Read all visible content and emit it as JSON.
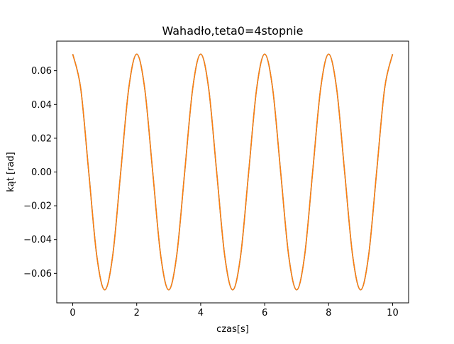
{
  "chart_data": {
    "type": "line",
    "title": "Wahadło,teta0=4stopnie",
    "xlabel": "czas[s]",
    "ylabel": "kąt [rad]",
    "xlim": [
      -0.5,
      10.5
    ],
    "ylim": [
      -0.0775,
      0.0775
    ],
    "grid": false,
    "x_ticks": [
      0,
      2,
      4,
      6,
      8,
      10
    ],
    "x_tick_labels": [
      "0",
      "2",
      "4",
      "6",
      "8",
      "10"
    ],
    "y_ticks": [
      -0.06,
      -0.04,
      -0.02,
      0.0,
      0.02,
      0.04,
      0.06
    ],
    "y_tick_labels": [
      "−0.06",
      "−0.04",
      "−0.02",
      "0.00",
      "0.02",
      "0.04",
      "0.06"
    ],
    "series": [
      {
        "color": "#1f77b4",
        "x": [
          0,
          0.25,
          0.5,
          0.75,
          1,
          1.25,
          1.5,
          1.75,
          2,
          2.25,
          2.5,
          2.75,
          3,
          3.25,
          3.5,
          3.75,
          4,
          4.25,
          4.5,
          4.75,
          5,
          5.25,
          5.5,
          5.75,
          6,
          6.25,
          6.5,
          6.75,
          7,
          7.25,
          7.5,
          7.75,
          8,
          8.25,
          8.5,
          8.75,
          9,
          9.25,
          9.5,
          9.75,
          10
        ],
        "y": [
          0.0698,
          0.0494,
          0.0,
          -0.0494,
          -0.0698,
          -0.0494,
          0.0,
          0.0494,
          0.0698,
          0.0494,
          0.0,
          -0.0494,
          -0.0698,
          -0.0494,
          0.0,
          0.0494,
          0.0698,
          0.0494,
          0.0,
          -0.0494,
          -0.0698,
          -0.0494,
          0.0,
          0.0494,
          0.0698,
          0.0494,
          0.0,
          -0.0494,
          -0.0698,
          -0.0494,
          0.0,
          0.0494,
          0.0698,
          0.0494,
          0.0,
          -0.0494,
          -0.0698,
          -0.0494,
          0.0,
          0.0494,
          0.0698
        ]
      },
      {
        "color": "#ff7f0e",
        "x": [
          0,
          0.25,
          0.5,
          0.75,
          1,
          1.25,
          1.5,
          1.75,
          2,
          2.25,
          2.5,
          2.75,
          3,
          3.25,
          3.5,
          3.75,
          4,
          4.25,
          4.5,
          4.75,
          5,
          5.25,
          5.5,
          5.75,
          6,
          6.25,
          6.5,
          6.75,
          7,
          7.25,
          7.5,
          7.75,
          8,
          8.25,
          8.5,
          8.75,
          9,
          9.25,
          9.5,
          9.75,
          10
        ],
        "y": [
          0.0698,
          0.0494,
          0.0,
          -0.0494,
          -0.0698,
          -0.0494,
          0.0,
          0.0494,
          0.0698,
          0.0494,
          0.0,
          -0.0494,
          -0.0698,
          -0.0494,
          0.0,
          0.0494,
          0.0698,
          0.0494,
          0.0,
          -0.0494,
          -0.0698,
          -0.0494,
          0.0,
          0.0494,
          0.0698,
          0.0494,
          0.0,
          -0.0494,
          -0.0698,
          -0.0494,
          0.0,
          0.0494,
          0.0698,
          0.0494,
          0.0,
          -0.0494,
          -0.0698,
          -0.0494,
          0.0,
          0.0494,
          0.0698
        ]
      }
    ]
  }
}
